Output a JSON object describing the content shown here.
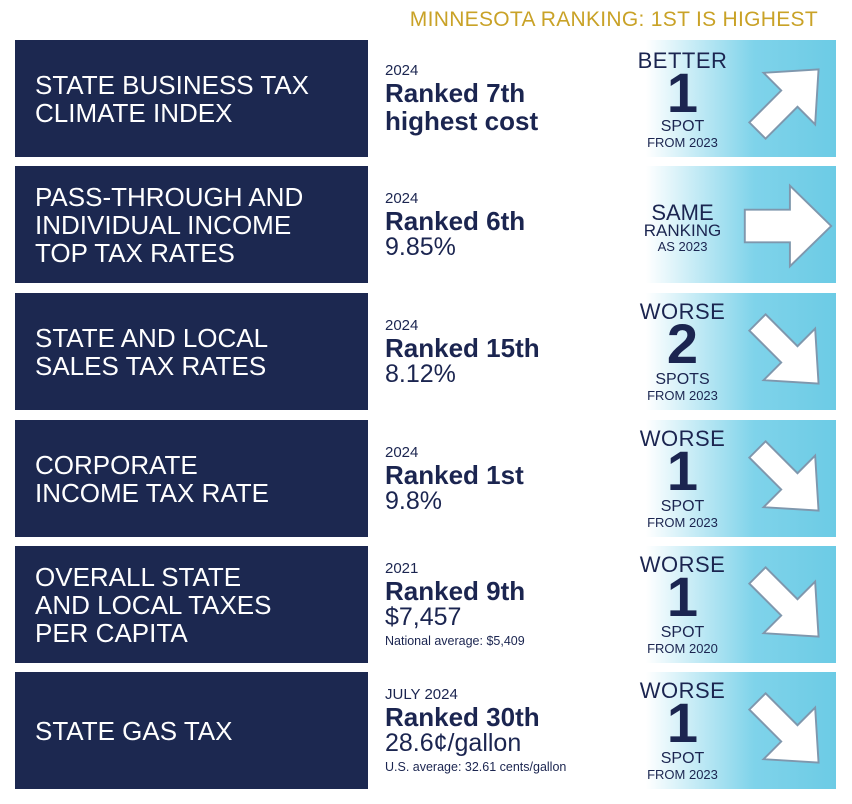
{
  "header": {
    "title": "MINNESOTA RANKING: 1ST IS HIGHEST"
  },
  "rows": [
    {
      "label": "STATE BUSINESS TAX\nCLIMATE INDEX",
      "year": "2024",
      "rank": "Ranked 7th\nhighest cost",
      "value": "",
      "note": "",
      "change": {
        "word": "BETTER",
        "number": "1",
        "unit": "SPOT",
        "from": "FROM 2023",
        "direction": "up"
      }
    },
    {
      "label": "PASS-THROUGH AND\nINDIVIDUAL INCOME\nTOP TAX RATES",
      "year": "2024",
      "rank": "Ranked 6th",
      "value": "9.85%",
      "note": "",
      "change": {
        "word": "SAME",
        "number": "",
        "unit": "RANKING",
        "from": "AS 2023",
        "direction": "right"
      }
    },
    {
      "label": "STATE AND LOCAL\nSALES TAX RATES",
      "year": "2024",
      "rank": "Ranked 15th",
      "value": "8.12%",
      "note": "",
      "change": {
        "word": "WORSE",
        "number": "2",
        "unit": "SPOTS",
        "from": "FROM 2023",
        "direction": "down"
      }
    },
    {
      "label": "CORPORATE\nINCOME TAX RATE",
      "year": "2024",
      "rank": "Ranked 1st",
      "value": "9.8%",
      "note": "",
      "change": {
        "word": "WORSE",
        "number": "1",
        "unit": "SPOT",
        "from": "FROM 2023",
        "direction": "down"
      }
    },
    {
      "label": "OVERALL STATE\nAND LOCAL TAXES\nPER CAPITA",
      "year": "2021",
      "rank": "Ranked 9th",
      "value": "$7,457",
      "note": "National average: $5,409",
      "change": {
        "word": "WORSE",
        "number": "1",
        "unit": "SPOT",
        "from": "FROM 2020",
        "direction": "down"
      }
    },
    {
      "label": "STATE GAS TAX",
      "year": "JULY 2024",
      "rank": "Ranked 30th",
      "value": "28.6¢/gallon",
      "note": "U.S. average: 32.61 cents/gallon",
      "change": {
        "word": "WORSE",
        "number": "1",
        "unit": "SPOT",
        "from": "FROM 2023",
        "direction": "down"
      }
    }
  ]
}
